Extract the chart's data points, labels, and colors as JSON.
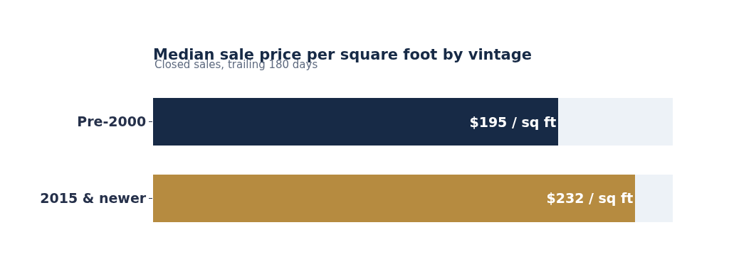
{
  "chart_data": {
    "type": "bar",
    "orientation": "horizontal",
    "stacked": true,
    "title": "Median sale price per square foot by vintage",
    "subtitle": "Closed sales, trailing 180 days",
    "categories": [
      "Pre-2000",
      "2015 & newer"
    ],
    "series": [
      {
        "colors": [
          "#172a46",
          "#b68b40"
        ],
        "values": [
          195,
          232
        ],
        "value_labels": [
          "$195 / sq ft",
          "$232 / sq ft"
        ]
      },
      {
        "color": "#edf2f7",
        "values": [
          55,
          18
        ]
      }
    ],
    "xlim": [
      0,
      250
    ],
    "tick_labels": "y"
  }
}
